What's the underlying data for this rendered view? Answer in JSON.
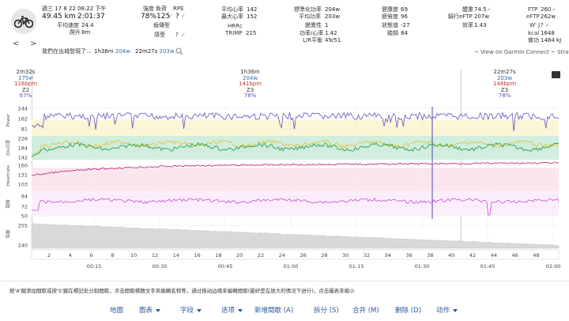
{
  "header": {
    "date": "週三 17 8 22",
    "time": "08:22 下午",
    "distance": "49.45 km",
    "duration": "2:01:37",
    "avg_speed_label": "平均速度",
    "avg_speed": "24.4",
    "climb_label": "爬升",
    "climb": "8m",
    "intensity_label": "強度",
    "intensity": "78%",
    "load_label": "負荷",
    "load": "125",
    "load_suffix": "✓",
    "rpe_label": "RPE",
    "rpe": "?",
    "rpe_suffix": "✓",
    "gear_label": "齒傳型",
    "feel_label": "感受",
    "feel": "?",
    "feel_suffix": "✓",
    "avg_hr_label": "平均心率",
    "avg_hr": "142",
    "max_hr_label": "最大心率",
    "max_hr": "152",
    "hrrc_label": "HRRc",
    "trimp_label": "TRIMP",
    "trimp": "215",
    "np_label": "標準化功率",
    "np": "204w",
    "avg_power_label": "平均功率",
    "avg_power": "203w",
    "var_label": "變異性",
    "var": "1",
    "pw_hr_label": "功率/心率",
    "pw_hr": "1.42",
    "lr_label": "L/R平衡",
    "lr": "49/51",
    "fitness_label": "健康度",
    "fitness": "69",
    "fatigue_label": "疲勞度",
    "fatigue": "96",
    "form_label": "狀態值",
    "form": "-27",
    "tsb_label": "踏頻",
    "cadence": "84",
    "weight_label": "體重",
    "weight": "74.5",
    "weight_suffix": "✓",
    "eftp_label": "騎行eFTP",
    "eftp_ride": "207w",
    "eff_label": "效率",
    "eff": "1.43",
    "ftp_label": "FTP",
    "ftp": "260",
    "ftp_suffix": "✓",
    "eftp2_label": "eFTP",
    "eftp2": "262w",
    "wj_label": "W' J",
    "wj": "?",
    "wj_suffix": "✓",
    "kcal_label": "kcal",
    "kcal": "1648",
    "work_label": "做功",
    "work": "1484 kJ",
    "laps_prefix": "我們在出城發現了...",
    "lap1_time": "1h36m",
    "lap1_watt": "204w",
    "lap2_time": "22m27s",
    "lap2_watt": "203w",
    "sync_text": "~ View on Garmin Connect ~ Strava"
  },
  "segments": [
    {
      "name": "2m32s",
      "watt": "175w",
      "hr": "116bpm",
      "zone": "Z2",
      "pct": "67%"
    },
    {
      "name": "1h36m",
      "watt": "204w",
      "hr": "141bpm",
      "zone": "Z3",
      "pct": "78%"
    },
    {
      "name": "22m27s",
      "watt": "203w",
      "hr": "148bpm",
      "zone": "Z3",
      "pct": "78%"
    }
  ],
  "chart_data": {
    "type": "line",
    "panels": [
      {
        "name": "Power",
        "yticks": [
          "244",
          "162",
          "81"
        ]
      },
      {
        "name": "30s功率",
        "yticks": [
          "226",
          "184",
          "142"
        ]
      },
      {
        "name": "Heartrate",
        "yticks": [
          "160",
          "131",
          "103"
        ]
      },
      {
        "name": "踏頻",
        "yticks": [
          "94",
          "72",
          "50"
        ]
      },
      {
        "name": "海拔",
        "yticks": [
          "255",
          "240"
        ]
      }
    ],
    "x_km_ticks": [
      "2",
      "4",
      "6",
      "8",
      "10",
      "12",
      "14",
      "16",
      "18",
      "20",
      "22",
      "24",
      "26",
      "28",
      "30",
      "32",
      "34",
      "36",
      "38",
      "40",
      "42",
      "44",
      "46",
      "48"
    ],
    "x_time_ticks": [
      "00:15",
      "00:30",
      "00:45",
      "01:00",
      "01:15",
      "01:30",
      "01:45",
      "02:00"
    ],
    "colors": {
      "power": "#6a4fc0",
      "power30": "#2e9e4f",
      "power30_high": "#e6c84a",
      "hr": "#c0307a",
      "cadence": "#c050d0",
      "alt": "#cfcfcf"
    }
  },
  "bottom": {
    "help": "按'A'鍵添加間歇或按'S'鍵在標記处分割間歇，点击間歇標題文字來編輯名称等，通过拖动边缘來編輯間歇(最好是在放大的情况下进行)，点击圖表來縮小",
    "menu": [
      "地圖",
      "圖表",
      "字段",
      "迭项",
      "新增間歇 (A)",
      "拆分 (S)",
      "合并 (M)",
      "删除 (D)",
      "动作"
    ]
  }
}
